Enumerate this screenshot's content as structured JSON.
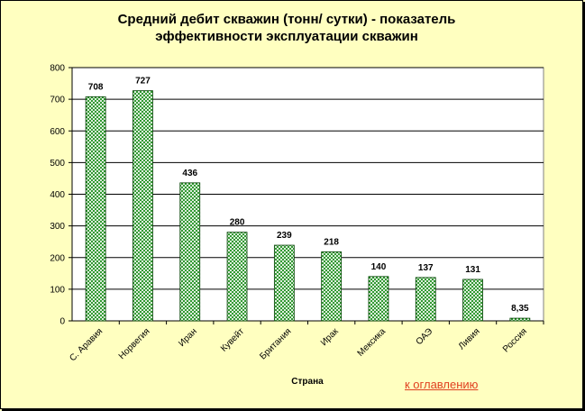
{
  "chart_data": {
    "type": "bar",
    "title_lines": [
      "Средний дебит скважин (тонн/ сутки) - показатель",
      "эффективности эксплуатации скважин"
    ],
    "xlabel": "Страна",
    "ylabel": "",
    "categories": [
      "С. Аравия",
      "Норвегия",
      "Иран",
      "Кувейт",
      "Британия",
      "Ирак",
      "Мексика",
      "ОАЭ",
      "Ливия",
      "Россия"
    ],
    "values": [
      708,
      727,
      436,
      280,
      239,
      218,
      140,
      137,
      131,
      8.35
    ],
    "data_labels": [
      "708",
      "727",
      "436",
      "280",
      "239",
      "218",
      "140",
      "137",
      "131",
      "8,35"
    ],
    "ylim": [
      0,
      800
    ],
    "yticks": [
      0,
      100,
      200,
      300,
      400,
      500,
      600,
      700,
      800
    ],
    "grid": true,
    "legend": "none",
    "colors": {
      "bar": "#008000",
      "bar_pattern": "#ffffff",
      "background": "#ffffc0",
      "plot_area": "#ffffff"
    }
  },
  "link": {
    "text": "к оглавлению",
    "color": "#e04020"
  }
}
